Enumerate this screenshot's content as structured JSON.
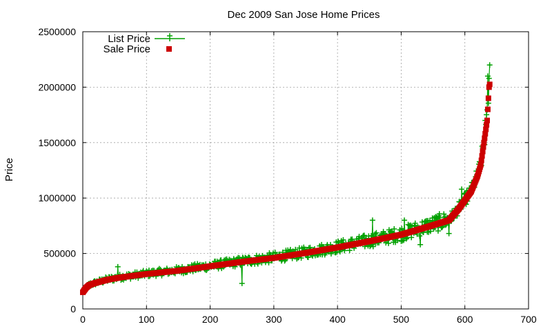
{
  "chart_data": {
    "type": "scatter",
    "title": "Dec 2009 San Jose Home Prices",
    "xlabel": "",
    "ylabel": "Price",
    "xlim": [
      0,
      700
    ],
    "ylim": [
      0,
      2500000
    ],
    "x_ticks": [
      0,
      100,
      200,
      300,
      400,
      500,
      600,
      700
    ],
    "y_ticks": [
      0,
      500000,
      1000000,
      1500000,
      2000000,
      2500000
    ],
    "x_tick_labels": [
      "0",
      "100",
      "200",
      "300",
      "400",
      "500",
      "600",
      "700"
    ],
    "y_tick_labels": [
      "0",
      "500000",
      "1000000",
      "1500000",
      "2000000",
      "2500000"
    ],
    "grid": true,
    "legend_position": "top-left",
    "n_points": 640,
    "sale_curve_knots": [
      [
        0,
        150000
      ],
      [
        5,
        190000
      ],
      [
        10,
        215000
      ],
      [
        20,
        235000
      ],
      [
        40,
        265000
      ],
      [
        60,
        285000
      ],
      [
        100,
        315000
      ],
      [
        150,
        345000
      ],
      [
        200,
        385000
      ],
      [
        250,
        425000
      ],
      [
        300,
        460000
      ],
      [
        350,
        505000
      ],
      [
        400,
        555000
      ],
      [
        450,
        610000
      ],
      [
        500,
        670000
      ],
      [
        550,
        755000
      ],
      [
        575,
        800000
      ],
      [
        590,
        900000
      ],
      [
        600,
        980000
      ],
      [
        610,
        1060000
      ],
      [
        620,
        1200000
      ],
      [
        625,
        1300000
      ],
      [
        630,
        1500000
      ],
      [
        635,
        1700000
      ],
      [
        638,
        2000000
      ],
      [
        640,
        2050000
      ]
    ],
    "list_price_highlights": [
      [
        55,
        380000
      ],
      [
        250,
        230000
      ],
      [
        455,
        800000
      ],
      [
        505,
        800000
      ],
      [
        530,
        580000
      ],
      [
        575,
        680000
      ],
      [
        595,
        1080000
      ],
      [
        632,
        1700000
      ],
      [
        636,
        2100000
      ],
      [
        639,
        2200000
      ]
    ],
    "series": [
      {
        "name": "List Price",
        "color": "#00a000",
        "marker": "plus",
        "style": "linespoints"
      },
      {
        "name": "Sale Price",
        "color": "#cc0000",
        "marker": "square",
        "style": "points"
      }
    ]
  }
}
